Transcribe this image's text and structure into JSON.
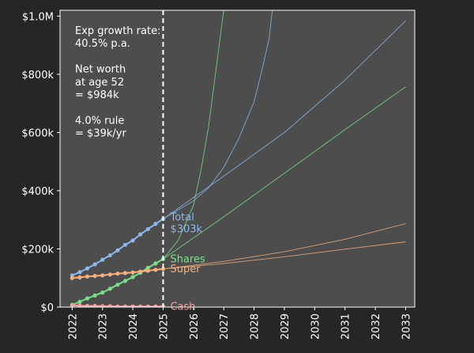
{
  "colors": {
    "page_bg": "#262626",
    "plot_bg": "#4d4d4d",
    "axis": "#ffffff",
    "total": "#8cb8ea",
    "shares": "#78e08a",
    "super": "#f5b080",
    "cash": "#f5a0a0",
    "marker_line": "#ffffff"
  },
  "annotation": [
    "Exp growth rate:",
    "40.5% p.a.",
    "",
    "Net worth",
    "at age 52",
    "= $984k",
    "",
    "4.0% rule",
    "= $39k/yr"
  ],
  "chart_data": {
    "type": "line",
    "title": "",
    "xlabel": "",
    "ylabel": "",
    "xlim": [
      2021.6,
      2033.3
    ],
    "ylim": [
      0,
      1020
    ],
    "x_ticks": [
      2022,
      2023,
      2024,
      2025,
      2026,
      2027,
      2028,
      2029,
      2030,
      2031,
      2032,
      2033
    ],
    "y_ticks": [
      {
        "value": 0,
        "label": "$0"
      },
      {
        "value": 200,
        "label": "$200k"
      },
      {
        "value": 400,
        "label": "$400k"
      },
      {
        "value": 600,
        "label": "$600k"
      },
      {
        "value": 800,
        "label": "$800k"
      },
      {
        "value": 1000,
        "label": "$1.0M"
      }
    ],
    "today_marker_x": 2025,
    "series": [
      {
        "name": "Total",
        "end_label": [
          "Total",
          "$303k"
        ],
        "color_key": "total",
        "history": [
          [
            2022.0,
            109
          ],
          [
            2022.25,
            120
          ],
          [
            2022.5,
            133
          ],
          [
            2022.75,
            147
          ],
          [
            2023.0,
            163
          ],
          [
            2023.25,
            178
          ],
          [
            2023.5,
            195
          ],
          [
            2023.75,
            214
          ],
          [
            2024.0,
            229
          ],
          [
            2024.25,
            250
          ],
          [
            2024.5,
            268
          ],
          [
            2024.75,
            286
          ],
          [
            2025.0,
            303
          ]
        ],
        "projections": [
          [
            [
              2025.0,
              303
            ],
            [
              2026.0,
              365
            ],
            [
              2026.5,
              410
            ],
            [
              2027.0,
              480
            ],
            [
              2027.5,
              580
            ],
            [
              2028.0,
              705
            ],
            [
              2028.25,
              810
            ],
            [
              2028.5,
              925
            ],
            [
              2028.6,
              1020
            ]
          ],
          [
            [
              2025.0,
              303
            ],
            [
              2027.0,
              450
            ],
            [
              2029.0,
              600
            ],
            [
              2031.0,
              780
            ],
            [
              2033.0,
              984
            ]
          ]
        ]
      },
      {
        "name": "Shares",
        "end_label": [
          "Shares"
        ],
        "color_key": "shares",
        "history": [
          [
            2022.0,
            8
          ],
          [
            2022.25,
            18
          ],
          [
            2022.5,
            30
          ],
          [
            2022.75,
            40
          ],
          [
            2023.0,
            50
          ],
          [
            2023.25,
            63
          ],
          [
            2023.5,
            77
          ],
          [
            2023.75,
            90
          ],
          [
            2024.0,
            103
          ],
          [
            2024.25,
            118
          ],
          [
            2024.5,
            135
          ],
          [
            2024.75,
            150
          ],
          [
            2025.0,
            165
          ]
        ],
        "projections": [
          [
            [
              2025.0,
              165
            ],
            [
              2025.5,
              230
            ],
            [
              2026.0,
              350
            ],
            [
              2026.25,
              470
            ],
            [
              2026.5,
              620
            ],
            [
              2026.75,
              820
            ],
            [
              2027.0,
              1020
            ]
          ],
          [
            [
              2025.0,
              165
            ],
            [
              2027.0,
              310
            ],
            [
              2029.0,
              460
            ],
            [
              2031.0,
              610
            ],
            [
              2033.0,
              757
            ]
          ]
        ]
      },
      {
        "name": "Super",
        "end_label": [
          "Super"
        ],
        "color_key": "super",
        "history": [
          [
            2022.0,
            100
          ],
          [
            2022.25,
            102
          ],
          [
            2022.5,
            105
          ],
          [
            2022.75,
            107
          ],
          [
            2023.0,
            109
          ],
          [
            2023.25,
            112
          ],
          [
            2023.5,
            115
          ],
          [
            2023.75,
            117
          ],
          [
            2024.0,
            119
          ],
          [
            2024.25,
            122
          ],
          [
            2024.5,
            125
          ],
          [
            2024.75,
            128
          ],
          [
            2025.0,
            131
          ]
        ],
        "projections": [
          [
            [
              2025.0,
              131
            ],
            [
              2027.0,
              157
            ],
            [
              2029.0,
              190
            ],
            [
              2031.0,
              233
            ],
            [
              2033.0,
              287
            ]
          ],
          [
            [
              2025.0,
              131
            ],
            [
              2027.0,
              150
            ],
            [
              2029.0,
              173
            ],
            [
              2031.0,
              199
            ],
            [
              2033.0,
              224
            ]
          ]
        ]
      },
      {
        "name": "Cash",
        "end_label": [
          "Cash"
        ],
        "color_key": "cash",
        "history": [
          [
            2022.0,
            6
          ],
          [
            2022.25,
            5
          ],
          [
            2022.5,
            4
          ],
          [
            2022.75,
            4
          ],
          [
            2023.0,
            3
          ],
          [
            2023.25,
            3
          ],
          [
            2023.5,
            2
          ],
          [
            2023.75,
            2
          ],
          [
            2024.0,
            2
          ],
          [
            2024.25,
            2
          ],
          [
            2024.5,
            2
          ],
          [
            2024.75,
            2
          ],
          [
            2025.0,
            2
          ]
        ],
        "projections": []
      }
    ]
  }
}
